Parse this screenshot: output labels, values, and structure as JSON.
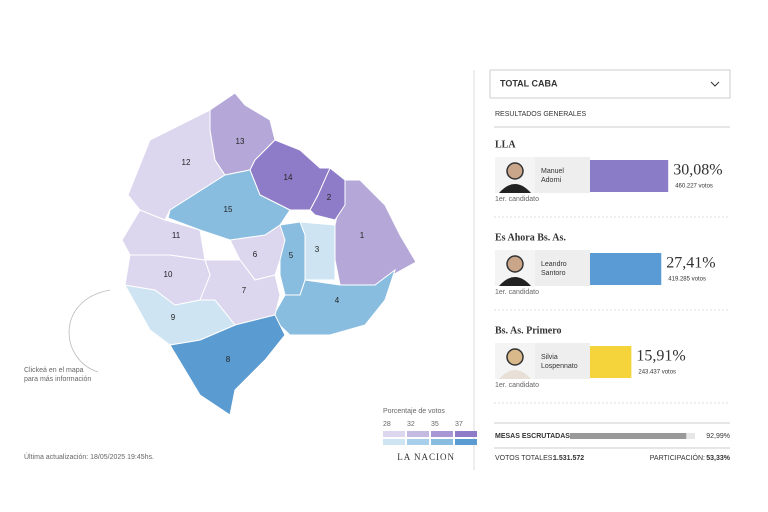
{
  "map": {
    "hint": [
      "Clickeá en el mapa",
      "para más información"
    ],
    "updated": "Última actualización: 18/05/2025 19:45hs.",
    "comunas": [
      {
        "label": "1",
        "color": "#b5a8d8"
      },
      {
        "label": "2",
        "color": "#8f7cc8"
      },
      {
        "label": "3",
        "color": "#cfe4f3"
      },
      {
        "label": "4",
        "color": "#89bde0"
      },
      {
        "label": "5",
        "color": "#89bde0"
      },
      {
        "label": "6",
        "color": "#dcd6ee"
      },
      {
        "label": "7",
        "color": "#dcd6ee"
      },
      {
        "label": "8",
        "color": "#5a9bd1"
      },
      {
        "label": "9",
        "color": "#cfe4f3"
      },
      {
        "label": "10",
        "color": "#dcd6ee"
      },
      {
        "label": "11",
        "color": "#dcd6ee"
      },
      {
        "label": "12",
        "color": "#dcd6ee"
      },
      {
        "label": "13",
        "color": "#b5a8d8"
      },
      {
        "label": "14",
        "color": "#8f7cc8"
      },
      {
        "label": "15",
        "color": "#89bde0"
      }
    ],
    "legend": {
      "title": "Porcentaje de votos",
      "ticks": [
        28,
        32,
        35,
        37
      ],
      "rows": [
        [
          "#dcd6ee",
          "#c4bae2",
          "#a797d4",
          "#8f7cc8"
        ],
        [
          "#cfe4f3",
          "#a8cfea",
          "#89bde0",
          "#5a9bd1"
        ]
      ]
    },
    "logo": "LA NACION"
  },
  "panel": {
    "dropdown": "TOTAL CABA",
    "section": "RESULTADOS GENERALES",
    "parties": [
      {
        "party": "LLA",
        "candidate": [
          "Manuel",
          "Adorni"
        ],
        "percent": 30.08,
        "percent_label": "30,08%",
        "votes": "460.227 votos",
        "role": "1er. candidato",
        "color": "#8b7cc8"
      },
      {
        "party": "Es Ahora Bs. As.",
        "candidate": [
          "Leandro",
          "Santoro"
        ],
        "percent": 27.41,
        "percent_label": "27,41%",
        "votes": "419.285 votos",
        "role": "1er. candidato",
        "color": "#5a9bd5"
      },
      {
        "party": "Bs. As. Primero",
        "candidate": [
          "Silvia",
          "Lospennato"
        ],
        "percent": 15.91,
        "percent_label": "15,91%",
        "votes": "243.437 votos",
        "role": "1er. candidato",
        "color": "#f5d33a"
      }
    ],
    "mesas": {
      "label": "MESAS ESCRUTADAS:",
      "value": 92.99,
      "value_label": "92,99%"
    },
    "votos_totales": {
      "label": "VOTOS TOTALES:",
      "value": "1.531.572"
    },
    "participacion": {
      "label": "PARTICIPACIÓN:",
      "value": "53,33%"
    }
  }
}
